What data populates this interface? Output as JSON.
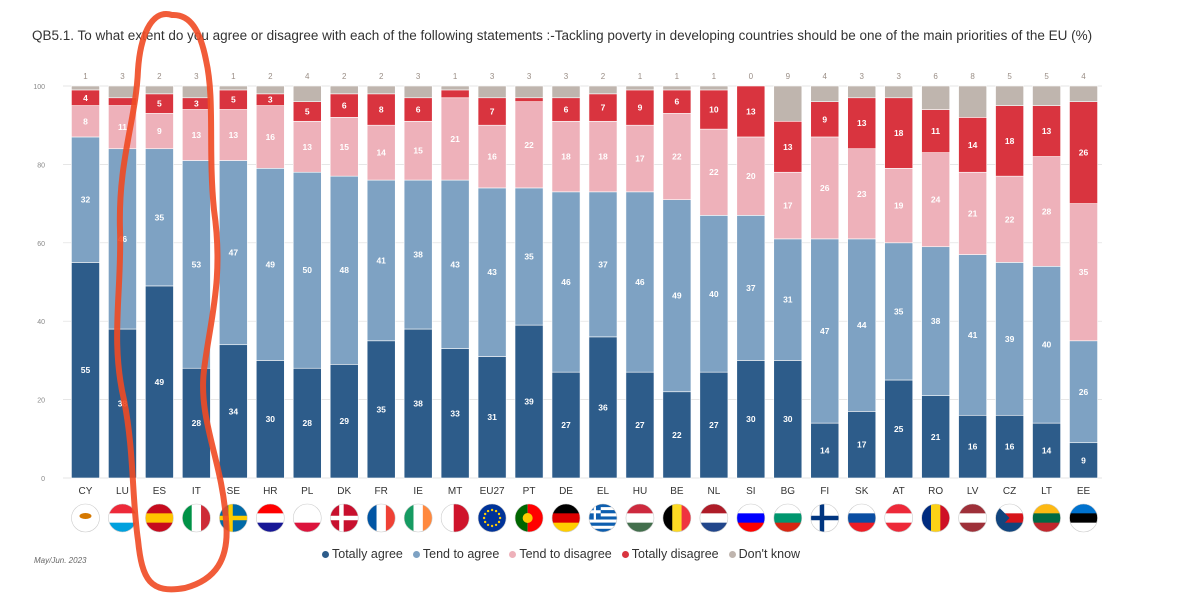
{
  "chart_data": {
    "type": "bar",
    "stacked": true,
    "title": "QB5.1. To what extent do you agree or disagree with each of the following statements :-Tackling poverty in developing countries should be one of the main priorities of the EU (%)",
    "ylim": [
      0,
      100
    ],
    "yticks": [
      "0",
      "20",
      "40",
      "60",
      "80",
      "100"
    ],
    "categories": [
      "CY",
      "LU",
      "ES",
      "IT",
      "SE",
      "HR",
      "PL",
      "DK",
      "FR",
      "IE",
      "MT",
      "EU27",
      "PT",
      "DE",
      "EL",
      "HU",
      "BE",
      "NL",
      "SI",
      "BG",
      "FI",
      "SK",
      "AT",
      "RO",
      "LV",
      "CZ",
      "LT",
      "EE"
    ],
    "series": [
      {
        "name": "Totally agree",
        "color": "#2d5c8a",
        "values": [
          55,
          38,
          49,
          28,
          34,
          30,
          28,
          29,
          35,
          38,
          33,
          31,
          39,
          27,
          36,
          27,
          22,
          27,
          30,
          30,
          14,
          17,
          25,
          21,
          16,
          16,
          14,
          9
        ]
      },
      {
        "name": "Tend to agree",
        "color": "#7ea2c3",
        "values": [
          32,
          46,
          35,
          53,
          47,
          49,
          50,
          48,
          41,
          38,
          43,
          43,
          35,
          46,
          37,
          46,
          49,
          40,
          37,
          31,
          47,
          44,
          35,
          38,
          41,
          39,
          40,
          26
        ]
      },
      {
        "name": "Tend to disagree",
        "color": "#eeb1ba",
        "values": [
          8,
          11,
          9,
          13,
          13,
          16,
          13,
          15,
          14,
          15,
          21,
          16,
          22,
          18,
          18,
          17,
          22,
          22,
          20,
          17,
          26,
          23,
          19,
          24,
          21,
          22,
          28,
          35
        ]
      },
      {
        "name": "Totally disagree",
        "color": "#d9343f",
        "values": [
          4,
          2,
          5,
          3,
          5,
          3,
          5,
          6,
          8,
          6,
          2,
          7,
          1,
          6,
          7,
          9,
          6,
          10,
          13,
          13,
          9,
          13,
          18,
          11,
          14,
          18,
          13,
          26
        ]
      },
      {
        "name": "Don't know",
        "color": "#bfb5ae",
        "values": [
          1,
          3,
          2,
          3,
          1,
          2,
          4,
          2,
          2,
          3,
          1,
          3,
          3,
          3,
          2,
          1,
          1,
          1,
          0,
          9,
          4,
          3,
          3,
          6,
          8,
          5,
          5,
          4
        ]
      }
    ],
    "legend_position": "bottom"
  },
  "flags": [
    {
      "code": "CY",
      "colors": [
        "#ffffff",
        "#ffffff",
        "#ffffff"
      ],
      "orient": "h"
    },
    {
      "code": "LU",
      "colors": [
        "#ed2939",
        "#ffffff",
        "#00a1de"
      ],
      "orient": "h"
    },
    {
      "code": "ES",
      "colors": [
        "#c60b1e",
        "#ffc400",
        "#c60b1e"
      ],
      "orient": "h"
    },
    {
      "code": "IT",
      "colors": [
        "#009246",
        "#ffffff",
        "#ce2b37"
      ],
      "orient": "v"
    },
    {
      "code": "SE",
      "colors": [
        "#006aa7",
        "#fecc00",
        "#006aa7"
      ],
      "orient": "cross"
    },
    {
      "code": "HR",
      "colors": [
        "#ff0000",
        "#ffffff",
        "#171796"
      ],
      "orient": "h"
    },
    {
      "code": "PL",
      "colors": [
        "#ffffff",
        "#ffffff",
        "#dc143c"
      ],
      "orient": "h"
    },
    {
      "code": "DK",
      "colors": [
        "#c8102e",
        "#ffffff",
        "#c8102e"
      ],
      "orient": "cross"
    },
    {
      "code": "FR",
      "colors": [
        "#0055a4",
        "#ffffff",
        "#ef4135"
      ],
      "orient": "v"
    },
    {
      "code": "IE",
      "colors": [
        "#169b62",
        "#ffffff",
        "#ff883e"
      ],
      "orient": "v"
    },
    {
      "code": "MT",
      "colors": [
        "#ffffff",
        "#cf142b",
        "#cf142b"
      ],
      "orient": "v2"
    },
    {
      "code": "EU27",
      "colors": [
        "#003399",
        "#003399",
        "#003399"
      ],
      "orient": "h"
    },
    {
      "code": "PT",
      "colors": [
        "#006600",
        "#ff0000",
        "#ff0000"
      ],
      "orient": "v2"
    },
    {
      "code": "DE",
      "colors": [
        "#000000",
        "#dd0000",
        "#ffce00"
      ],
      "orient": "h"
    },
    {
      "code": "EL",
      "colors": [
        "#0d5eaf",
        "#ffffff",
        "#0d5eaf"
      ],
      "orient": "h"
    },
    {
      "code": "HU",
      "colors": [
        "#cd2a3e",
        "#ffffff",
        "#436f4d"
      ],
      "orient": "h"
    },
    {
      "code": "BE",
      "colors": [
        "#000000",
        "#fdda24",
        "#ef3340"
      ],
      "orient": "v"
    },
    {
      "code": "NL",
      "colors": [
        "#ae1c28",
        "#ffffff",
        "#21468b"
      ],
      "orient": "h"
    },
    {
      "code": "SI",
      "colors": [
        "#ffffff",
        "#0000ff",
        "#ff0000"
      ],
      "orient": "h"
    },
    {
      "code": "BG",
      "colors": [
        "#ffffff",
        "#00966e",
        "#d62612"
      ],
      "orient": "h"
    },
    {
      "code": "FI",
      "colors": [
        "#ffffff",
        "#003580",
        "#ffffff"
      ],
      "orient": "cross"
    },
    {
      "code": "SK",
      "colors": [
        "#ffffff",
        "#0b4ea2",
        "#ee1c25"
      ],
      "orient": "h"
    },
    {
      "code": "AT",
      "colors": [
        "#ed2939",
        "#ffffff",
        "#ed2939"
      ],
      "orient": "h"
    },
    {
      "code": "RO",
      "colors": [
        "#002b7f",
        "#fcd116",
        "#ce1126"
      ],
      "orient": "v"
    },
    {
      "code": "LV",
      "colors": [
        "#9e3039",
        "#ffffff",
        "#9e3039"
      ],
      "orient": "h"
    },
    {
      "code": "CZ",
      "colors": [
        "#ffffff",
        "#d7141a",
        "#11457e"
      ],
      "orient": "h"
    },
    {
      "code": "LT",
      "colors": [
        "#fdb913",
        "#006a44",
        "#c1272d"
      ],
      "orient": "h"
    },
    {
      "code": "EE",
      "colors": [
        "#0072ce",
        "#000000",
        "#ffffff"
      ],
      "orient": "h"
    }
  ],
  "footer": {
    "date": "May/Jun. 2023"
  },
  "annotation": {
    "color": "#f04a24"
  }
}
